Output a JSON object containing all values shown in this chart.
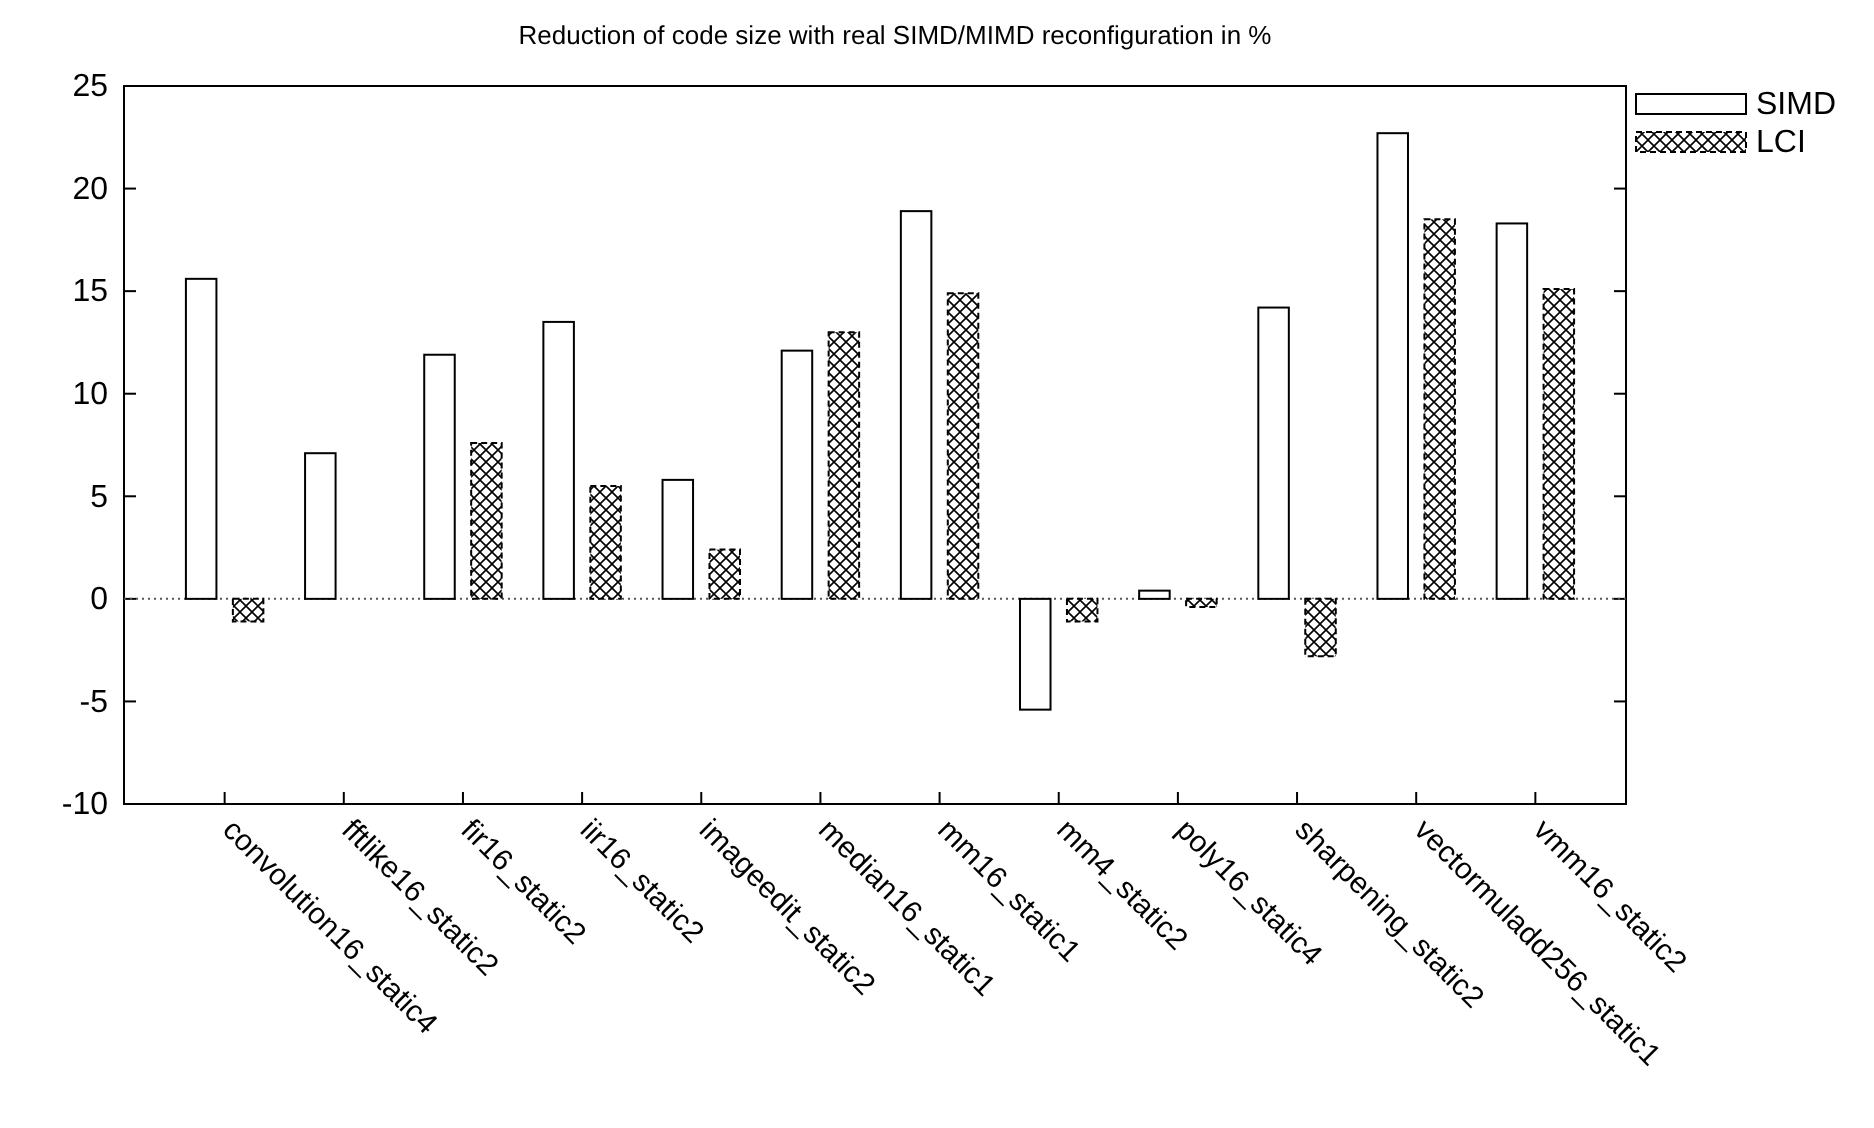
{
  "chart_data": {
    "type": "bar",
    "title": "Reduction of code size with real SIMD/MIMD reconfiguration in %",
    "categories": [
      "convolution16_static4",
      "fftlike16_static2",
      "fir16_static2",
      "iir16_static2",
      "imageedit_static2",
      "median16_static1",
      "mm16_static1",
      "mm4_static2",
      "poly16_static4",
      "sharpening_static2",
      "vectormuladd256_static1",
      "vmm16_static2"
    ],
    "series": [
      {
        "name": "SIMD",
        "color": "#ffffff",
        "values": [
          15.6,
          7.1,
          11.9,
          13.5,
          5.8,
          12.1,
          18.9,
          -5.4,
          0.4,
          14.2,
          22.7,
          18.3
        ]
      },
      {
        "name": "LCI",
        "color": "#000000",
        "values": [
          -1.1,
          0,
          7.6,
          5.5,
          2.4,
          13.0,
          14.9,
          -1.1,
          -0.4,
          -2.8,
          18.5,
          15.1
        ]
      }
    ],
    "ylim": [
      -10,
      25
    ],
    "yticks": [
      -10,
      -5,
      0,
      5,
      10,
      15,
      20,
      25
    ],
    "grid": false,
    "legend": "top right",
    "ref_lines": [
      {
        "axis": "y",
        "value": 0,
        "line_style": "dotted",
        "color": "#555555"
      }
    ]
  }
}
